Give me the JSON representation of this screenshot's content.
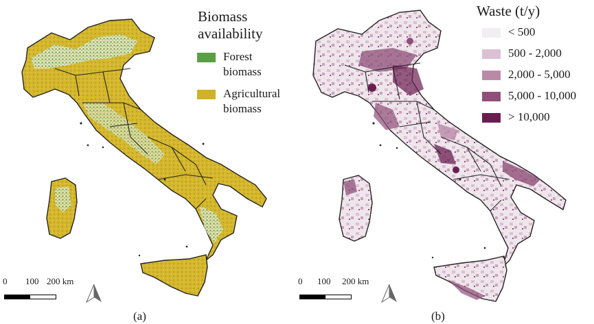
{
  "panel_a": {
    "legend_title_line1": "Biomass",
    "legend_title_line2": "availability",
    "legend": [
      {
        "label_line1": "Forest",
        "label_line2": "biomass",
        "color": "#5a9e45"
      },
      {
        "label_line1": "Agricultural",
        "label_line2": "biomass",
        "color": "#cfb325"
      }
    ],
    "scale": {
      "l0": "0",
      "l1": "100",
      "l2": "200 km"
    },
    "caption": "(a)",
    "north_icon": "north-arrow-icon"
  },
  "panel_b": {
    "legend_title": "Waste (t/y)",
    "legend": [
      {
        "label": "< 500",
        "color": "#f1eef1"
      },
      {
        "label": "500 - 2,000",
        "color": "#dcc0d3"
      },
      {
        "label": "2,000 - 5,000",
        "color": "#b98aa8"
      },
      {
        "label": "5,000 - 10,000",
        "color": "#8e4f78"
      },
      {
        "label": "> 10,000",
        "color": "#6a1e50"
      }
    ],
    "scale": {
      "l0": "0",
      "l1": "100",
      "l2": "200 km"
    },
    "caption": "(b)",
    "north_icon": "north-arrow-icon"
  }
}
